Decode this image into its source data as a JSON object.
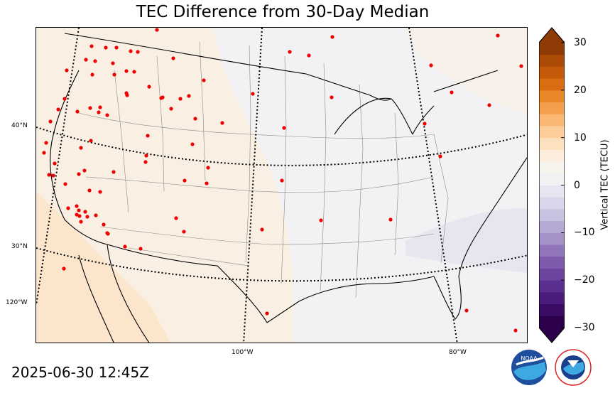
{
  "title": "TEC Difference from 30-Day Median",
  "timestamp": "2025-06-30 12:45Z",
  "map": {
    "lat_labels": [
      "40°N",
      "30°N"
    ],
    "lon_labels": [
      "120°W",
      "100°W",
      "80°W"
    ],
    "projection": "lambert-conformal",
    "station_color": "#ee0000"
  },
  "colorbar": {
    "label": "Vertical TEC (TECU)",
    "ticks": [
      "30",
      "20",
      "10",
      "0",
      "−10",
      "−20",
      "−30"
    ],
    "range": [
      -30,
      30
    ],
    "colormap": "PuOr_r",
    "extend": "both",
    "colors": [
      "#2d004b",
      "#3a0c63",
      "#4a1c7c",
      "#5b2f8f",
      "#6c459f",
      "#7e5bad",
      "#9075ba",
      "#a391c7",
      "#b5aad3",
      "#c7c2e0",
      "#d8d6ea",
      "#e6e5f2",
      "#f1f1f4",
      "#f7f4ee",
      "#fbecdb",
      "#fde0bd",
      "#fdce99",
      "#fbb874",
      "#f49f4e",
      "#e98628",
      "#d96d12",
      "#c45a0a",
      "#ab4b07",
      "#8e3b05"
    ]
  },
  "logos": {
    "noaa_text": "NOAA",
    "nws_text": "NATIONAL WEATHER SERVICE"
  }
}
